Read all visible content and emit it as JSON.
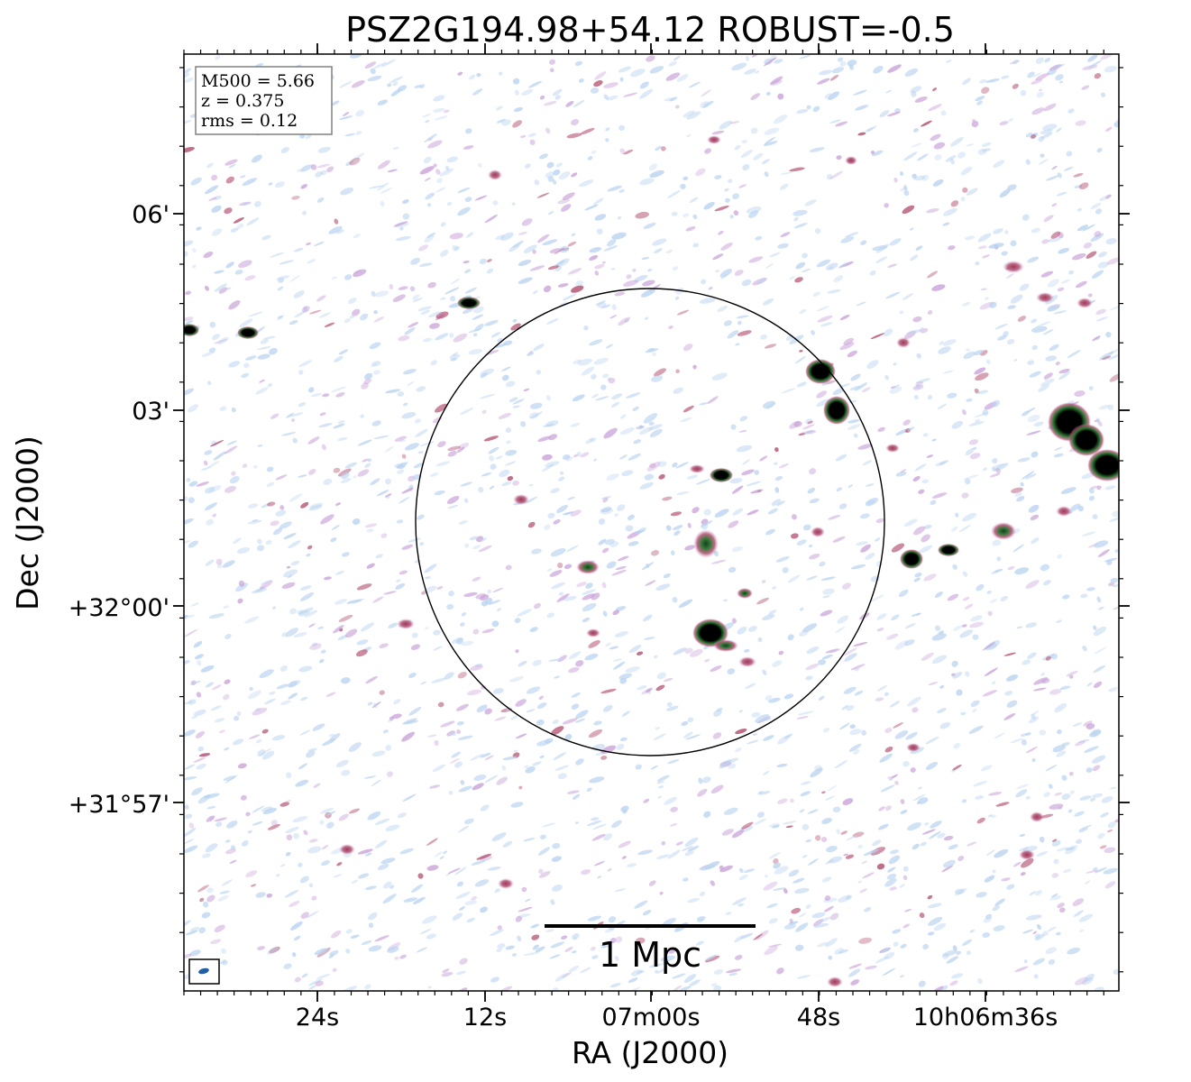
{
  "chart_data": {
    "type": "heatmap",
    "title": "PSZ2G194.98+54.12 ROBUST=-0.5",
    "xlabel": "RA (J2000)",
    "ylabel": "Dec (J2000)",
    "x_ticks": [
      "24s",
      "12s",
      "07m00s",
      "48s",
      "10h06m36s"
    ],
    "y_ticks": [
      "06'",
      "03'",
      "+32°00'",
      "+31°57'"
    ],
    "info": {
      "m500": "M500 = 5.66",
      "z": "z = 0.375",
      "rms": "rms = 0.12"
    },
    "scale_bar": {
      "label": "1 Mpc"
    },
    "colormap": [
      "#ffffff",
      "#b9d3f0",
      "#c8a0d8",
      "#b0486a",
      "#2f7a36",
      "#000000"
    ],
    "aperture": {
      "shape": "circle",
      "color": "#000000"
    },
    "beam": {
      "color": "#1f5fa8"
    }
  }
}
